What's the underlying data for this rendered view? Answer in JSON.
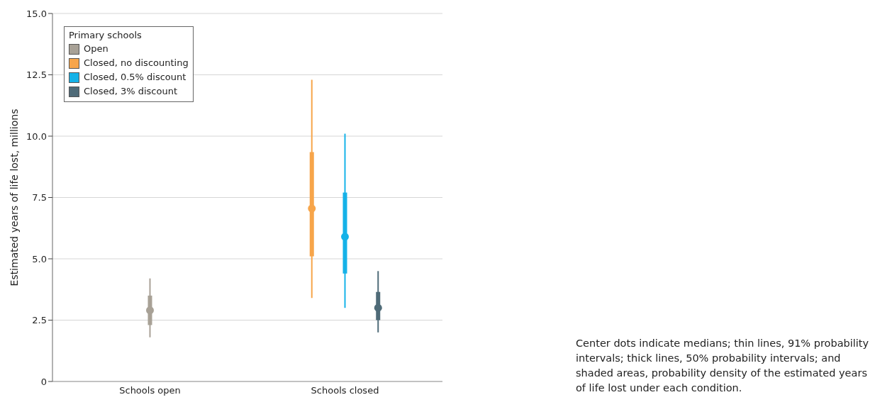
{
  "chart_data": {
    "type": "box",
    "ylabel": "Estimated years of life lost, millions",
    "legend_title": "Primary schools",
    "categories": [
      "Schools open",
      "Schools closed"
    ],
    "series": [
      {
        "name": "Open",
        "color": "#a8a196",
        "boxes": [
          {
            "low": 1.8,
            "q1": 2.3,
            "median": 2.9,
            "q3": 3.5,
            "high": 4.2
          },
          null
        ]
      },
      {
        "name": "Closed, no discounting",
        "color": "#f7a54a",
        "boxes": [
          null,
          {
            "low": 3.4,
            "q1": 5.1,
            "median": 7.05,
            "q3": 9.35,
            "high": 12.3
          }
        ]
      },
      {
        "name": "Closed, 0.5% discount",
        "color": "#15b2e8",
        "boxes": [
          null,
          {
            "low": 3.0,
            "q1": 4.4,
            "median": 5.9,
            "q3": 7.7,
            "high": 10.1
          }
        ]
      },
      {
        "name": "Closed, 3% discount",
        "color": "#4f6b78",
        "boxes": [
          null,
          {
            "low": 2.0,
            "q1": 2.5,
            "median": 3.0,
            "q3": 3.65,
            "high": 4.5
          }
        ]
      }
    ],
    "ylim": [
      0,
      15
    ],
    "yticks": [
      0,
      2.5,
      {
        "value": 5,
        "label": "5.0"
      },
      7.5,
      {
        "value": 10,
        "label": "10.0"
      },
      12.5,
      {
        "value": 15,
        "label": "15.0"
      }
    ],
    "grid": "y",
    "legend": "top left",
    "annotations": [
      "Center dots indicate medians; thin lines, 91% probability intervals; thick lines, 50% probability intervals; and shaded areas, probability density of the estimated years of life lost under each condition."
    ]
  }
}
